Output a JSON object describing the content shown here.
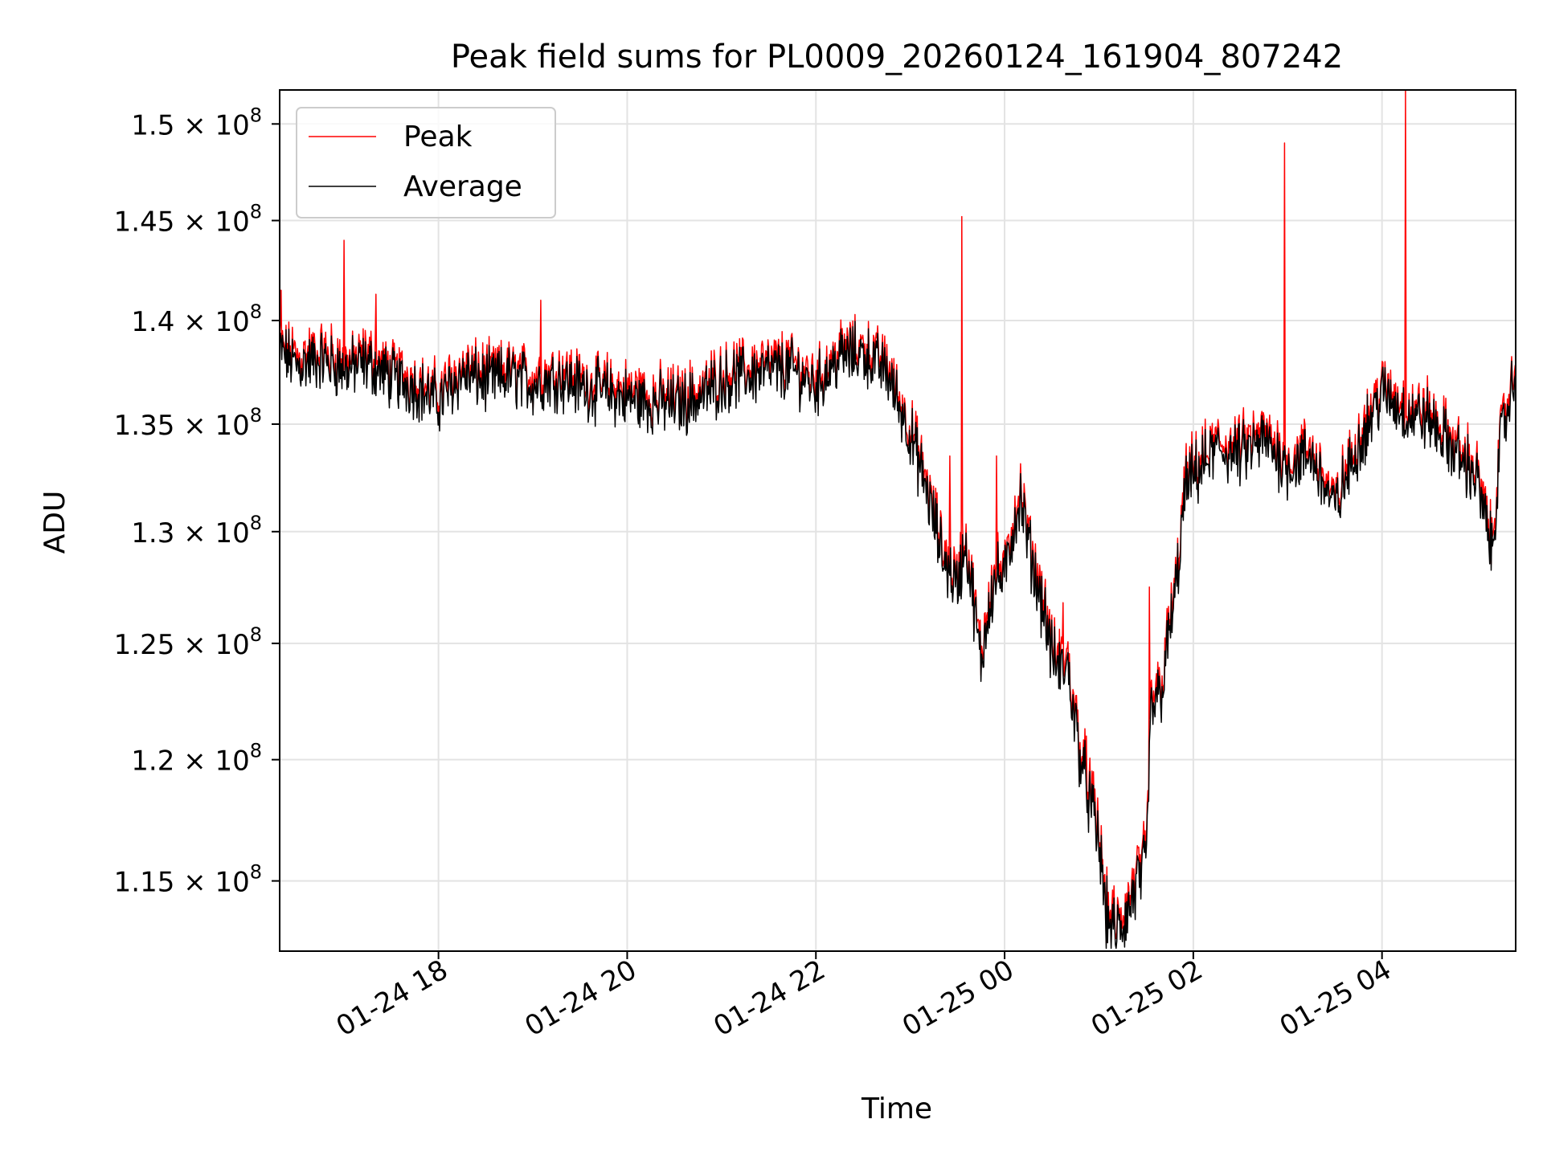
{
  "chart_data": {
    "type": "line",
    "title": "Peak field sums for PL0009_20260124_161904_807242",
    "xlabel": "Time",
    "ylabel": "ADU",
    "x_axis": {
      "kind": "datetime",
      "min": "2026-01-24 16:19",
      "max": "2026-01-25 05:25",
      "ticks": [
        {
          "value": "2026-01-24 18:00",
          "label": "01-24 18"
        },
        {
          "value": "2026-01-24 20:00",
          "label": "01-24 20"
        },
        {
          "value": "2026-01-24 22:00",
          "label": "01-24 22"
        },
        {
          "value": "2026-01-25 00:00",
          "label": "01-25 00"
        },
        {
          "value": "2026-01-25 02:00",
          "label": "01-25 02"
        },
        {
          "value": "2026-01-25 04:00",
          "label": "01-25 04"
        }
      ]
    },
    "y_axis": {
      "scale": "log",
      "min": 112200000,
      "max": 151800000,
      "ticks": [
        {
          "value": 115000000,
          "mantissa": "1.15",
          "label": "1.15 × 10^8"
        },
        {
          "value": 120000000,
          "mantissa": "1.2",
          "label": "1.2 × 10^8"
        },
        {
          "value": 125000000,
          "mantissa": "1.25",
          "label": "1.25 × 10^8"
        },
        {
          "value": 130000000,
          "mantissa": "1.3",
          "label": "1.3 × 10^8"
        },
        {
          "value": 135000000,
          "mantissa": "1.35",
          "label": "1.35 × 10^8"
        },
        {
          "value": 140000000,
          "mantissa": "1.4",
          "label": "1.4 × 10^8"
        },
        {
          "value": 145000000,
          "mantissa": "1.45",
          "label": "1.45 × 10^8"
        },
        {
          "value": 150000000,
          "mantissa": "1.5",
          "label": "1.5 × 10^8"
        }
      ],
      "tick_base": "10",
      "tick_exponent": "8"
    },
    "grid": true,
    "legend": {
      "placement": "top-left",
      "entries": [
        {
          "label": "Peak",
          "color": "#ff0000"
        },
        {
          "label": "Average",
          "color": "#000000"
        }
      ]
    },
    "series": [
      {
        "name": "Average",
        "color": "#000000",
        "points": [
          [
            "2026-01-24 16:19",
            138500000.0
          ],
          [
            "2026-01-24 16:30",
            137800000.0
          ],
          [
            "2026-01-24 16:45",
            138100000.0
          ],
          [
            "2026-01-24 17:00",
            137600000.0
          ],
          [
            "2026-01-24 17:15",
            137900000.0
          ],
          [
            "2026-01-24 17:30",
            137200000.0
          ],
          [
            "2026-01-24 17:45",
            136800000.0
          ],
          [
            "2026-01-24 18:00",
            136000000.0
          ],
          [
            "2026-01-24 18:15",
            137400000.0
          ],
          [
            "2026-01-24 18:30",
            137000000.0
          ],
          [
            "2026-01-24 18:45",
            137300000.0
          ],
          [
            "2026-01-24 19:00",
            136900000.0
          ],
          [
            "2026-01-24 19:15",
            137200000.0
          ],
          [
            "2026-01-24 19:30",
            136800000.0
          ],
          [
            "2026-01-24 19:45",
            136500000.0
          ],
          [
            "2026-01-24 20:00",
            136200000.0
          ],
          [
            "2026-01-24 20:15",
            136000000.0
          ],
          [
            "2026-01-24 20:30",
            135900000.0
          ],
          [
            "2026-01-24 20:45",
            136200000.0
          ],
          [
            "2026-01-24 21:00",
            137000000.0
          ],
          [
            "2026-01-24 21:15",
            137300000.0
          ],
          [
            "2026-01-24 21:30",
            137500000.0
          ],
          [
            "2026-01-24 21:45",
            137600000.0
          ],
          [
            "2026-01-24 22:00",
            136800000.0
          ],
          [
            "2026-01-24 22:15",
            138200000.0
          ],
          [
            "2026-01-24 22:30",
            138400000.0
          ],
          [
            "2026-01-24 22:45",
            137500000.0
          ],
          [
            "2026-01-24 23:00",
            134500000.0
          ],
          [
            "2026-01-24 23:10",
            132000000.0
          ],
          [
            "2026-01-24 23:20",
            129000000.0
          ],
          [
            "2026-01-24 23:30",
            127500000.0
          ],
          [
            "2026-01-24 23:35",
            129500000.0
          ],
          [
            "2026-01-24 23:40",
            127000000.0
          ],
          [
            "2026-01-24 23:45",
            124000000.0
          ],
          [
            "2026-01-24 23:50",
            126800000.0
          ],
          [
            "2026-01-24 23:55",
            128000000.0
          ],
          [
            "2026-01-25 00:00",
            127800000.0
          ],
          [
            "2026-01-25 00:05",
            130000000.0
          ],
          [
            "2026-01-25 00:10",
            131500000.0
          ],
          [
            "2026-01-25 00:15",
            129500000.0
          ],
          [
            "2026-01-25 00:20",
            127800000.0
          ],
          [
            "2026-01-25 00:25",
            126500000.0
          ],
          [
            "2026-01-25 00:30",
            124500000.0
          ],
          [
            "2026-01-25 00:35",
            123800000.0
          ],
          [
            "2026-01-25 00:40",
            124000000.0
          ],
          [
            "2026-01-25 00:45",
            121500000.0
          ],
          [
            "2026-01-25 00:50",
            119500000.0
          ],
          [
            "2026-01-25 00:55",
            118000000.0
          ],
          [
            "2026-01-25 01:00",
            116500000.0
          ],
          [
            "2026-01-25 01:05",
            113500000.0
          ],
          [
            "2026-01-25 01:10",
            112800000.0
          ],
          [
            "2026-01-25 01:15",
            113200000.0
          ],
          [
            "2026-01-25 01:20",
            114000000.0
          ],
          [
            "2026-01-25 01:25",
            115000000.0
          ],
          [
            "2026-01-25 01:30",
            115500000.0
          ],
          [
            "2026-01-25 01:33",
            122000000.0
          ],
          [
            "2026-01-25 01:40",
            123000000.0
          ],
          [
            "2026-01-25 01:45",
            125500000.0
          ],
          [
            "2026-01-25 01:50",
            128000000.0
          ],
          [
            "2026-01-25 01:55",
            132000000.0
          ],
          [
            "2026-01-25 02:00",
            132500000.0
          ],
          [
            "2026-01-25 02:15",
            133800000.0
          ],
          [
            "2026-01-25 02:30",
            133500000.0
          ],
          [
            "2026-01-25 02:45",
            134200000.0
          ],
          [
            "2026-01-25 03:00",
            133000000.0
          ],
          [
            "2026-01-25 03:15",
            133500000.0
          ],
          [
            "2026-01-25 03:30",
            131000000.0
          ],
          [
            "2026-01-25 03:45",
            134000000.0
          ],
          [
            "2026-01-25 04:00",
            136500000.0
          ],
          [
            "2026-01-25 04:15",
            135500000.0
          ],
          [
            "2026-01-25 04:30",
            135200000.0
          ],
          [
            "2026-01-25 04:45",
            133800000.0
          ],
          [
            "2026-01-25 05:00",
            132500000.0
          ],
          [
            "2026-01-25 05:10",
            129000000.0
          ],
          [
            "2026-01-25 05:15",
            134000000.0
          ],
          [
            "2026-01-25 05:25",
            137500000.0
          ]
        ]
      },
      {
        "name": "Peak",
        "color": "#ff0000",
        "offset_vs_average": 400000.0,
        "spikes": [
          [
            "2026-01-24 16:20",
            141500000.0
          ],
          [
            "2026-01-24 17:00",
            144000000.0
          ],
          [
            "2026-01-24 17:20",
            141300000.0
          ],
          [
            "2026-01-24 19:05",
            141000000.0
          ],
          [
            "2026-01-24 23:25",
            133500000.0
          ],
          [
            "2026-01-24 23:33",
            145200000.0
          ],
          [
            "2026-01-24 23:55",
            133500000.0
          ],
          [
            "2026-01-25 00:37",
            126800000.0
          ],
          [
            "2026-01-25 00:52",
            121000000.0
          ],
          [
            "2026-01-25 01:32",
            127500000.0
          ],
          [
            "2026-01-25 02:58",
            149000000.0
          ],
          [
            "2026-01-25 04:15",
            151800000.0
          ]
        ]
      }
    ]
  }
}
